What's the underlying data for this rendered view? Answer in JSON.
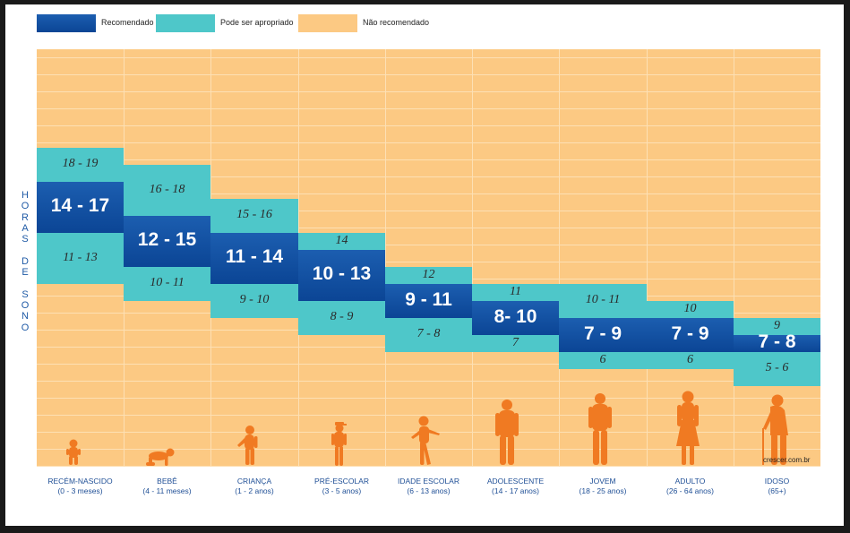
{
  "chart_data": {
    "type": "range-bar",
    "ylabel": "HORAS DE SONO",
    "legend": [
      {
        "name": "Recomendado",
        "color": "#0d4a9b"
      },
      {
        "name": "Pode ser apropriado",
        "color": "#4ec7c9"
      },
      {
        "name": "Não recomendado",
        "color": "#fcc983"
      }
    ],
    "y_axis_hours_top": 24,
    "categories": [
      {
        "name": "RECÉM-NASCIDO",
        "age": "(0 - 3 meses)",
        "appropriate_high": {
          "label": "18 - 19",
          "range": [
            17,
            19
          ]
        },
        "recommended": {
          "label": "14 - 17",
          "range": [
            14,
            17
          ]
        },
        "appropriate_low": {
          "label": "11 - 13",
          "range": [
            11,
            14
          ]
        },
        "figure": "baby-standing-icon"
      },
      {
        "name": "BEBÊ",
        "age": "(4 - 11 meses)",
        "appropriate_high": {
          "label": "16 - 18",
          "range": [
            15,
            18
          ]
        },
        "recommended": {
          "label": "12 - 15",
          "range": [
            12,
            15
          ]
        },
        "appropriate_low": {
          "label": "10 - 11",
          "range": [
            10,
            12
          ]
        },
        "figure": "crawling-baby-icon"
      },
      {
        "name": "CRIANÇA",
        "age": "(1 - 2 anos)",
        "appropriate_high": {
          "label": "15 - 16",
          "range": [
            14,
            16
          ]
        },
        "recommended": {
          "label": "11 - 14",
          "range": [
            11,
            14
          ]
        },
        "appropriate_low": {
          "label": "9 - 10",
          "range": [
            9,
            11
          ]
        },
        "figure": "toddler-icon"
      },
      {
        "name": "PRÉ-ESCOLAR",
        "age": "(3 - 5 anos)",
        "appropriate_high": {
          "label": "14",
          "range": [
            13,
            14
          ]
        },
        "recommended": {
          "label": "10 - 13",
          "range": [
            10,
            13
          ]
        },
        "appropriate_low": {
          "label": "8 - 9",
          "range": [
            8,
            10
          ]
        },
        "figure": "child-cap-icon"
      },
      {
        "name": "IDADE ESCOLAR",
        "age": "(6 - 13 anos)",
        "appropriate_high": {
          "label": "12",
          "range": [
            11,
            12
          ]
        },
        "recommended": {
          "label": "9 - 11",
          "range": [
            9,
            11
          ]
        },
        "appropriate_low": {
          "label": "7 - 8",
          "range": [
            7,
            9
          ]
        },
        "figure": "school-child-icon"
      },
      {
        "name": "ADOLESCENTE",
        "age": "(14 - 17 anos)",
        "appropriate_high": {
          "label": "11",
          "range": [
            10,
            11
          ]
        },
        "recommended": {
          "label": "8- 10",
          "range": [
            8,
            10
          ]
        },
        "appropriate_low": {
          "label": "7",
          "range": [
            7,
            8
          ]
        },
        "figure": "teen-icon"
      },
      {
        "name": "JOVEM",
        "age": "(18 - 25 anos)",
        "appropriate_high": {
          "label": "10 - 11",
          "range": [
            9,
            11
          ]
        },
        "recommended": {
          "label": "7 - 9",
          "range": [
            7,
            9
          ]
        },
        "appropriate_low": {
          "label": "6",
          "range": [
            6,
            7
          ]
        },
        "figure": "young-adult-icon"
      },
      {
        "name": "ADULTO",
        "age": "(26 - 64 anos)",
        "appropriate_high": {
          "label": "10",
          "range": [
            9,
            10
          ]
        },
        "recommended": {
          "label": "7 - 9",
          "range": [
            7,
            9
          ]
        },
        "appropriate_low": {
          "label": "6",
          "range": [
            6,
            7
          ]
        },
        "figure": "adult-icon"
      },
      {
        "name": "IDOSO",
        "age": "(65+)",
        "appropriate_high": {
          "label": "9",
          "range": [
            8,
            9
          ]
        },
        "recommended": {
          "label": "7 - 8",
          "range": [
            7,
            8
          ]
        },
        "appropriate_low": {
          "label": "5 - 6",
          "range": [
            5,
            7
          ]
        },
        "figure": "elderly-cane-icon"
      }
    ],
    "grid": true
  },
  "watermark": "crescer.com.br",
  "colors": {
    "recommended": "#0d4a9b",
    "appropriate": "#4ec7c9",
    "not_recommended": "#fcc983",
    "figure": "#f07a22",
    "category_text": "#1f4f96"
  }
}
